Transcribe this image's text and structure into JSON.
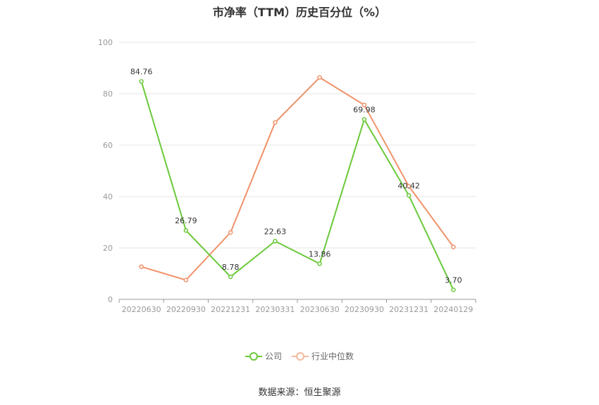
{
  "chart_data": {
    "type": "line",
    "title": "市净率（TTM）历史百分位（%）",
    "categories": [
      "20220630",
      "20220930",
      "20221231",
      "20230331",
      "20230630",
      "20230930",
      "20231231",
      "20240129"
    ],
    "ylim": [
      0,
      100
    ],
    "yticks": [
      0,
      20,
      40,
      60,
      80,
      100
    ],
    "grid": true,
    "legend_position": "bottom",
    "series": [
      {
        "name": "公司",
        "color": "#6ac93a",
        "values": [
          84.76,
          26.79,
          8.78,
          22.63,
          13.86,
          69.98,
          40.42,
          3.7
        ],
        "labels": [
          "84.76",
          "26.79",
          "8.78",
          "22.63",
          "13.86",
          "69.98",
          "40.42",
          "3.70"
        ]
      },
      {
        "name": "行业中位数",
        "color": "#f0936a",
        "values": [
          12.7,
          7.5,
          26.0,
          68.8,
          86.3,
          75.6,
          44.0,
          20.4
        ]
      }
    ]
  },
  "source": "数据来源：恒生聚源"
}
